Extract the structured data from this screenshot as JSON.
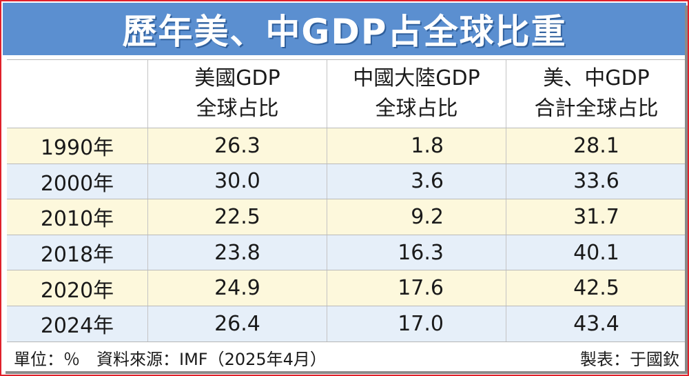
{
  "title": "歷年美、中GDP占全球比重",
  "colors": {
    "title_bg": "#5b8fd0",
    "border": "#e0202a",
    "row_yellow": "#fdf8dc",
    "row_blue": "#e6eff9"
  },
  "chart_data": {
    "type": "table",
    "title": "歷年美、中GDP占全球比重",
    "columns": [
      {
        "line1": "",
        "line2": ""
      },
      {
        "line1": "美國GDP",
        "line2": "全球占比"
      },
      {
        "line1": "中國大陸GDP",
        "line2": "全球占比"
      },
      {
        "line1": "美、中GDP",
        "line2": "合計全球占比"
      }
    ],
    "rows": [
      {
        "year": "1990年",
        "us": "26.3",
        "cn": "1.8",
        "total": "28.1"
      },
      {
        "year": "2000年",
        "us": "30.0",
        "cn": "3.6",
        "total": "33.6"
      },
      {
        "year": "2010年",
        "us": "22.5",
        "cn": "9.2",
        "total": "31.7"
      },
      {
        "year": "2018年",
        "us": "23.8",
        "cn": "16.3",
        "total": "40.1"
      },
      {
        "year": "2020年",
        "us": "24.9",
        "cn": "17.6",
        "total": "42.5"
      },
      {
        "year": "2024年",
        "us": "26.4",
        "cn": "17.0",
        "total": "43.4"
      }
    ]
  },
  "footer": {
    "left": "單位：％　資料來源：IMF（2025年4月）",
    "right": "製表：于國欽"
  }
}
